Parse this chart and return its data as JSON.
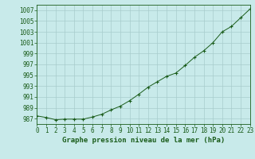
{
  "x": [
    0,
    1,
    2,
    3,
    4,
    5,
    6,
    7,
    8,
    9,
    10,
    11,
    12,
    13,
    14,
    15,
    16,
    17,
    18,
    19,
    20,
    21,
    22,
    23
  ],
  "y": [
    987.5,
    987.2,
    986.8,
    986.9,
    986.9,
    986.9,
    987.3,
    987.8,
    988.6,
    989.3,
    990.3,
    991.5,
    992.8,
    993.8,
    994.8,
    995.4,
    996.8,
    998.3,
    999.5,
    1001.0,
    1003.0,
    1004.0,
    1005.6,
    1007.2
  ],
  "ylim": [
    986.0,
    1008.0
  ],
  "yticks": [
    987,
    989,
    991,
    993,
    995,
    997,
    999,
    1001,
    1003,
    1005,
    1007
  ],
  "xticks": [
    0,
    1,
    2,
    3,
    4,
    5,
    6,
    7,
    8,
    9,
    10,
    11,
    12,
    13,
    14,
    15,
    16,
    17,
    18,
    19,
    20,
    21,
    22,
    23
  ],
  "xlim": [
    0,
    23
  ],
  "line_color": "#1a5c1a",
  "marker_color": "#1a5c1a",
  "bg_color": "#c8eaea",
  "grid_color": "#a8cccc",
  "axis_color": "#1a5c1a",
  "xlabel": "Graphe pression niveau de la mer (hPa)",
  "xlabel_fontsize": 6.5,
  "tick_fontsize": 5.5,
  "marker": "+"
}
